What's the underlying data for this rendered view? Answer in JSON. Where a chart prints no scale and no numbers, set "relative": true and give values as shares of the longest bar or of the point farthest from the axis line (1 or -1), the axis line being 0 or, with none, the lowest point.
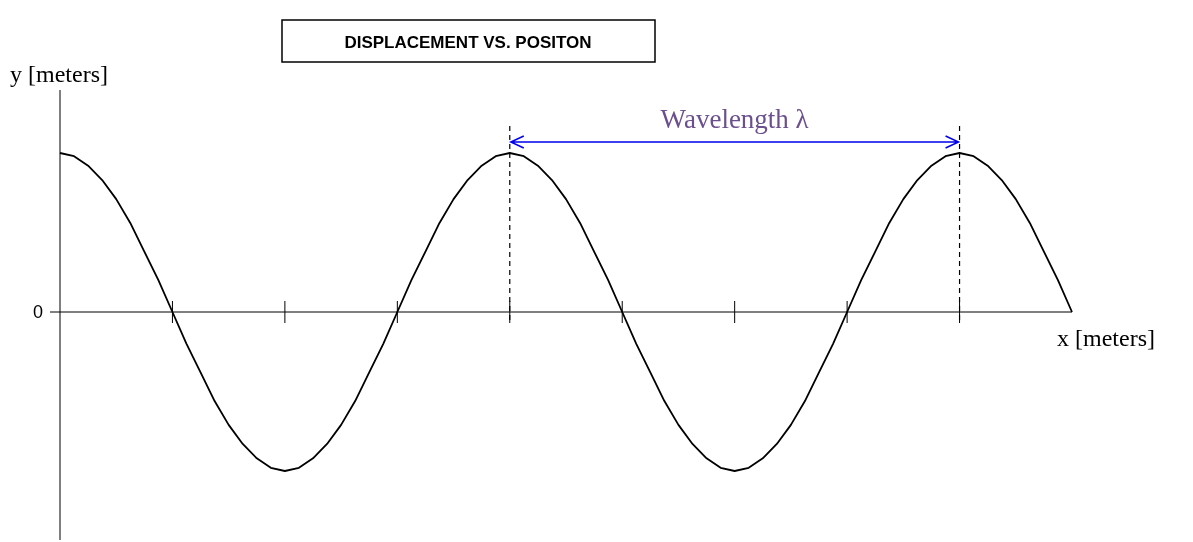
{
  "chart_data": {
    "type": "line",
    "title": "DISPLACEMENT VS. POSITON",
    "xlabel": "x [meters]",
    "ylabel": "y [meters]",
    "relative": true,
    "marker": "none",
    "line_style": "solid",
    "categories": [
      null,
      null,
      null,
      null,
      null,
      null,
      null,
      null,
      null,
      null,
      null,
      null,
      null,
      null,
      null,
      null,
      null,
      null,
      null,
      null,
      null,
      null,
      null,
      null,
      null,
      null,
      null,
      null,
      null,
      null,
      null,
      null,
      null,
      null,
      null,
      null,
      null,
      null,
      null,
      null,
      null,
      null,
      null,
      null,
      null,
      null,
      null,
      null,
      null,
      null,
      null,
      null,
      null,
      null,
      null,
      null,
      null,
      null,
      null,
      null,
      null,
      null,
      null,
      null,
      null,
      null,
      null,
      null,
      null,
      null,
      null,
      null,
      null
    ],
    "series": [
      {
        "color": "#000000",
        "values": [
          1,
          0.98,
          0.92,
          0.83,
          0.71,
          0.56,
          0.38,
          0.2,
          0,
          -0.2,
          -0.38,
          -0.56,
          -0.71,
          -0.83,
          -0.92,
          -0.98,
          -1,
          -0.98,
          -0.92,
          -0.83,
          -0.71,
          -0.56,
          -0.38,
          -0.2,
          0,
          0.2,
          0.38,
          0.56,
          0.71,
          0.83,
          0.92,
          0.98,
          1,
          0.98,
          0.92,
          0.83,
          0.71,
          0.56,
          0.38,
          0.2,
          0,
          -0.2,
          -0.38,
          -0.56,
          -0.71,
          -0.83,
          -0.92,
          -0.98,
          -1,
          -0.98,
          -0.92,
          -0.83,
          -0.71,
          -0.56,
          -0.38,
          -0.2,
          0,
          0.2,
          0.38,
          0.56,
          0.71,
          0.83,
          0.92,
          0.98,
          1,
          0.98,
          0.92,
          0.83,
          0.71,
          0.56,
          0.38,
          0.2,
          0
        ]
      }
    ],
    "annotations": [
      "0",
      "Wavelength λ"
    ]
  }
}
